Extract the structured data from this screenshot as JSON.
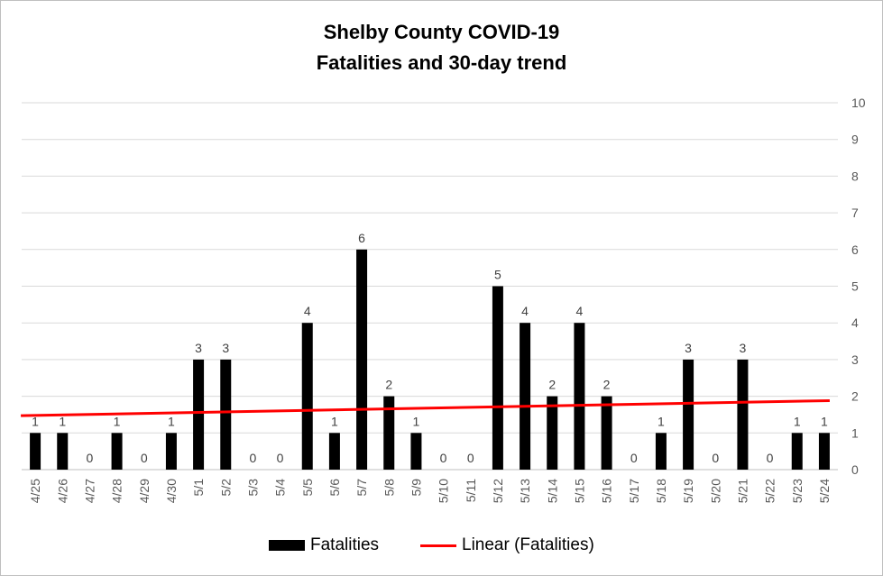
{
  "chart_data": {
    "type": "bar",
    "title": "Shelby County COVID-19",
    "subtitle": "Fatalities and 30-day trend",
    "categories": [
      "4/25",
      "4/26",
      "4/27",
      "4/28",
      "4/29",
      "4/30",
      "5/1",
      "5/2",
      "5/3",
      "5/4",
      "5/5",
      "5/6",
      "5/7",
      "5/8",
      "5/9",
      "5/10",
      "5/11",
      "5/12",
      "5/13",
      "5/14",
      "5/15",
      "5/16",
      "5/17",
      "5/18",
      "5/19",
      "5/20",
      "5/21",
      "5/22",
      "5/23",
      "5/24"
    ],
    "series": [
      {
        "name": "Fatalities",
        "values": [
          1,
          1,
          0,
          1,
          0,
          1,
          3,
          3,
          0,
          0,
          4,
          1,
          6,
          2,
          1,
          0,
          0,
          5,
          4,
          2,
          4,
          2,
          0,
          1,
          3,
          0,
          3,
          0,
          1,
          1
        ],
        "color": "#000000"
      }
    ],
    "trendline": {
      "name": "Linear (Fatalities)",
      "start": 1.47,
      "end": 1.88,
      "color": "#ff0000"
    },
    "yticks": [
      "0",
      "1",
      "2",
      "3",
      "4",
      "5",
      "6",
      "7",
      "8",
      "9",
      "10"
    ],
    "ylim": [
      0,
      10
    ],
    "y_axis_side": "right",
    "grid": true,
    "legend_position": "bottom",
    "xlabel": "",
    "ylabel": ""
  }
}
